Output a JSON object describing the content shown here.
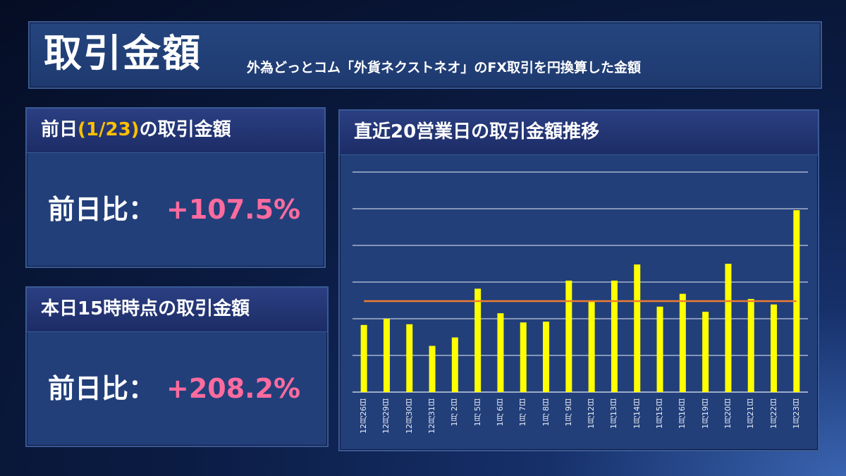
{
  "header": {
    "title": "取引金額",
    "subtitle": "外為どっとコム「外貨ネクストネオ」のFX取引を円換算した金額"
  },
  "prev_day": {
    "title_prefix": "前日",
    "title_date": "(1/23)",
    "title_suffix": "の取引金額",
    "label": "前日比：",
    "value": "+107.5%"
  },
  "today": {
    "title": "本日15時時点の取引金額",
    "label": "前日比：",
    "value": "+208.2%"
  },
  "colors": {
    "bar": "#ffff00",
    "average_line": "#ed7d31",
    "value_text": "#ff6b9e",
    "date_accent": "#ffc000"
  },
  "chart_data": {
    "type": "bar",
    "title": "直近20営業日の取引金額推移",
    "categories": [
      "12月26日",
      "12月29日",
      "12月30日",
      "12月31日",
      "1月 2日",
      "1月 5日",
      "1月 6日",
      "1月 7日",
      "1月 8日",
      "1月 9日",
      "1月12日",
      "1月13日",
      "1月14日",
      "1月15日",
      "1月16日",
      "1月19日",
      "1月20日",
      "1月21日",
      "1月22日",
      "1月23日"
    ],
    "values": [
      1.83,
      2.0,
      1.85,
      1.26,
      1.49,
      2.82,
      2.15,
      1.9,
      1.92,
      3.04,
      2.48,
      3.04,
      3.48,
      2.33,
      2.68,
      2.19,
      3.5,
      2.54,
      2.39,
      4.96
    ],
    "average_line": 2.48,
    "ylim": [
      0,
      6
    ],
    "grid": true,
    "y_tick_labels": false,
    "legend": "none"
  }
}
